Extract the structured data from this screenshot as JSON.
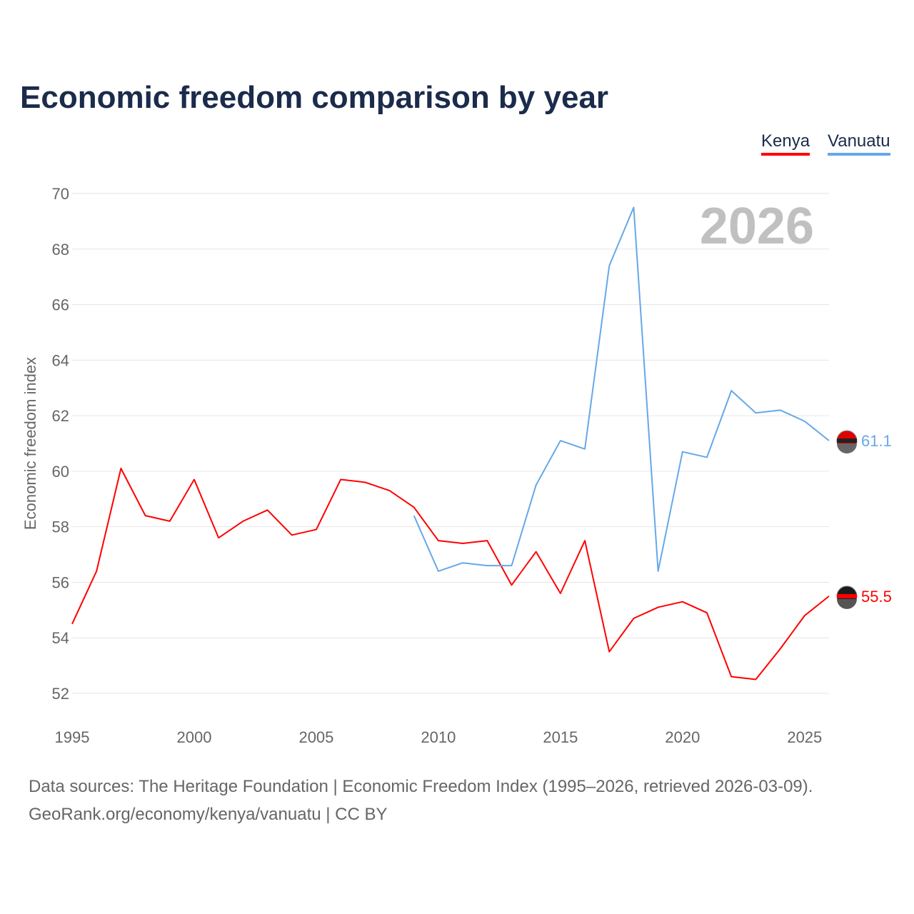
{
  "title": "Economic freedom comparison by year",
  "footer": {
    "line1": "Data sources: The Heritage Foundation | Economic Freedom Index (1995–2026, retrieved 2026-03-09).",
    "line2": "GeoRank.org/economy/kenya/vanuatu | CC BY"
  },
  "chart_data": {
    "type": "line",
    "title": "Economic freedom comparison by year",
    "xlabel": "",
    "ylabel": "Economic freedom index",
    "year_watermark": "2026",
    "xlim": [
      1995,
      2026
    ],
    "ylim": [
      52,
      70
    ],
    "xticks": [
      1995,
      2000,
      2005,
      2010,
      2015,
      2020,
      2025
    ],
    "yticks": [
      52,
      54,
      56,
      58,
      60,
      62,
      64,
      66,
      68,
      70
    ],
    "grid": true,
    "legend": "top-right",
    "series": [
      {
        "name": "Kenya",
        "color": "#ff0000",
        "end_label": "55.5",
        "x": [
          1995,
          1996,
          1997,
          1998,
          1999,
          2000,
          2001,
          2002,
          2003,
          2004,
          2005,
          2006,
          2007,
          2008,
          2009,
          2010,
          2011,
          2012,
          2013,
          2014,
          2015,
          2016,
          2017,
          2018,
          2019,
          2020,
          2021,
          2022,
          2023,
          2024,
          2025,
          2026
        ],
        "values": [
          54.5,
          56.4,
          60.1,
          58.4,
          58.2,
          59.7,
          57.6,
          58.2,
          58.6,
          57.7,
          57.9,
          59.7,
          59.6,
          59.3,
          58.7,
          57.5,
          57.4,
          57.5,
          55.9,
          57.1,
          55.6,
          57.5,
          53.5,
          54.7,
          55.1,
          55.3,
          54.9,
          52.6,
          52.5,
          53.6,
          54.8,
          55.5
        ]
      },
      {
        "name": "Vanuatu",
        "color": "#66a8e8",
        "end_label": "61.1",
        "x": [
          2009,
          2010,
          2011,
          2012,
          2013,
          2014,
          2015,
          2016,
          2017,
          2018,
          2019,
          2020,
          2021,
          2022,
          2023,
          2024,
          2025,
          2026
        ],
        "values": [
          58.4,
          56.4,
          56.7,
          56.6,
          56.6,
          59.5,
          61.1,
          60.8,
          67.4,
          69.5,
          56.4,
          60.7,
          60.5,
          62.9,
          62.1,
          62.2,
          61.8,
          61.1
        ]
      }
    ]
  }
}
